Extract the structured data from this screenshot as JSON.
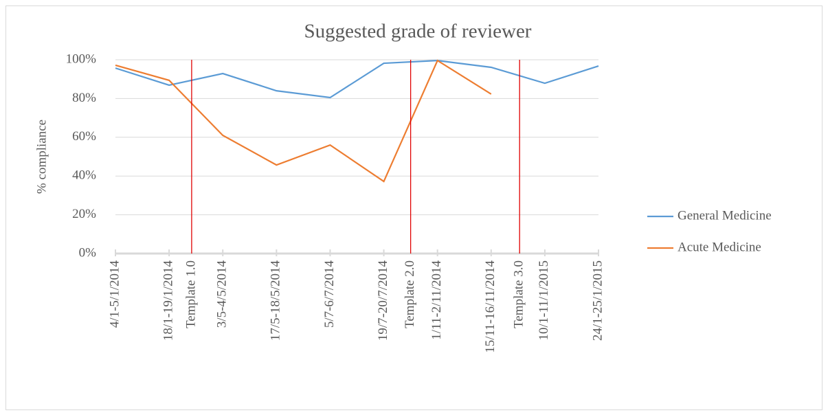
{
  "chart_data": {
    "type": "line",
    "title": "Suggested grade of reviewer",
    "y_label": "% compliance",
    "categories": [
      "4/1-5/1/2014",
      "18/1-19/1/2014",
      "3/5-4/5/2014",
      "17/5-18/5/2014",
      "5/7-6/7/2014",
      "19/7-20/7/2014",
      "1/11-2/11/2014",
      "15/11-16/11/2014",
      "10/1-11/1/2015",
      "24/1-25/1/2015"
    ],
    "series": [
      {
        "name": "General Medicine",
        "color": "#5b9bd5",
        "values": [
          95.7,
          86.9,
          92.9,
          84.0,
          80.5,
          98.2,
          99.6,
          96.1,
          87.9,
          96.8
        ]
      },
      {
        "name": "Acute Medicine",
        "color": "#ed7d31",
        "values": [
          97.2,
          89.4,
          61.0,
          45.7,
          56.0,
          37.2,
          99.6,
          82.3,
          null,
          null
        ]
      }
    ],
    "ylim": [
      0,
      100
    ],
    "yticks": [
      {
        "value": 0,
        "label": "0%"
      },
      {
        "value": 20,
        "label": "20%"
      },
      {
        "value": 40,
        "label": "40%"
      },
      {
        "value": 60,
        "label": "60%"
      },
      {
        "value": 80,
        "label": "80%"
      },
      {
        "value": 100,
        "label": "100%"
      }
    ],
    "grid": true,
    "legend": "right",
    "annotations": [
      {
        "label": "Template 1.0",
        "x": 1.42,
        "color": "#e00000"
      },
      {
        "label": "Template 2.0",
        "x": 5.5,
        "color": "#e00000"
      },
      {
        "label": "Template 3.0",
        "x": 7.53,
        "color": "#e00000"
      }
    ]
  }
}
